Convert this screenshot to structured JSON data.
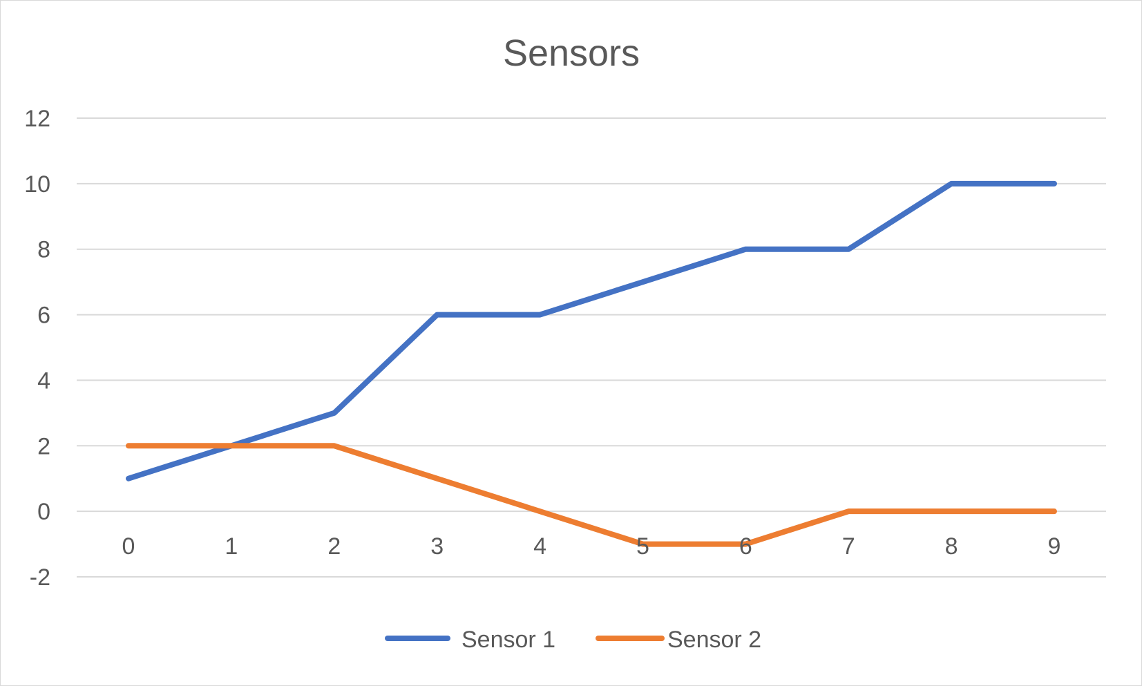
{
  "chart_data": {
    "type": "line",
    "title": "Sensors",
    "xlabel": "",
    "ylabel": "",
    "x": [
      0,
      1,
      2,
      3,
      4,
      5,
      6,
      7,
      8,
      9
    ],
    "x_tick_labels": [
      "0",
      "1",
      "2",
      "3",
      "4",
      "5",
      "6",
      "7",
      "8",
      "9"
    ],
    "ylim": [
      -2,
      12
    ],
    "y_ticks": [
      -2,
      0,
      2,
      4,
      6,
      8,
      10,
      12
    ],
    "y_tick_labels": [
      "-2",
      "0",
      "2",
      "4",
      "6",
      "8",
      "10",
      "12"
    ],
    "grid": true,
    "legend_position": "bottom",
    "series": [
      {
        "name": "Sensor 1",
        "color": "#4472C4",
        "values": [
          1,
          2,
          3,
          6,
          6,
          7,
          8,
          8,
          10,
          10
        ]
      },
      {
        "name": "Sensor 2",
        "color": "#ED7D31",
        "values": [
          2,
          2,
          2,
          1,
          0,
          -1,
          -1,
          0,
          0,
          0
        ]
      }
    ]
  }
}
